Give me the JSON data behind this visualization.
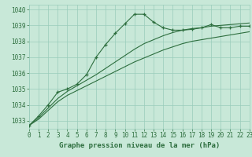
{
  "xlabel": "Graphe pression niveau de la mer (hPa)",
  "bg_color": "#c8e8d8",
  "grid_color": "#99ccbb",
  "line_color": "#2d6e3e",
  "x": [
    0,
    1,
    2,
    3,
    4,
    5,
    6,
    7,
    8,
    9,
    10,
    11,
    12,
    13,
    14,
    15,
    16,
    17,
    18,
    19,
    20,
    21,
    22,
    23
  ],
  "y_main": [
    1032.7,
    1033.3,
    1034.0,
    1034.8,
    1035.0,
    1035.3,
    1035.9,
    1037.0,
    1037.8,
    1038.5,
    1039.1,
    1039.7,
    1039.7,
    1039.2,
    1038.85,
    1038.7,
    1038.7,
    1038.75,
    1038.85,
    1039.05,
    1038.85,
    1038.85,
    1038.95,
    1038.95
  ],
  "y_upper": [
    1032.7,
    1033.2,
    1033.8,
    1034.4,
    1034.85,
    1035.2,
    1035.55,
    1035.9,
    1036.3,
    1036.7,
    1037.1,
    1037.5,
    1037.85,
    1038.1,
    1038.35,
    1038.55,
    1038.7,
    1038.8,
    1038.85,
    1038.95,
    1039.0,
    1039.05,
    1039.1,
    1039.15
  ],
  "y_lower": [
    1032.7,
    1033.1,
    1033.65,
    1034.2,
    1034.6,
    1034.9,
    1035.2,
    1035.5,
    1035.8,
    1036.1,
    1036.4,
    1036.7,
    1036.95,
    1037.2,
    1037.45,
    1037.65,
    1037.85,
    1038.0,
    1038.1,
    1038.2,
    1038.3,
    1038.4,
    1038.5,
    1038.6
  ],
  "ylim": [
    1032.5,
    1040.3
  ],
  "yticks": [
    1033,
    1034,
    1035,
    1036,
    1037,
    1038,
    1039,
    1040
  ],
  "xlim": [
    0,
    23
  ],
  "xticks": [
    0,
    1,
    2,
    3,
    4,
    5,
    6,
    7,
    8,
    9,
    10,
    11,
    12,
    13,
    14,
    15,
    16,
    17,
    18,
    19,
    20,
    21,
    22,
    23
  ],
  "marker": "+",
  "linewidth": 0.8,
  "fontsize_label": 6.5,
  "fontsize_tick": 5.5
}
